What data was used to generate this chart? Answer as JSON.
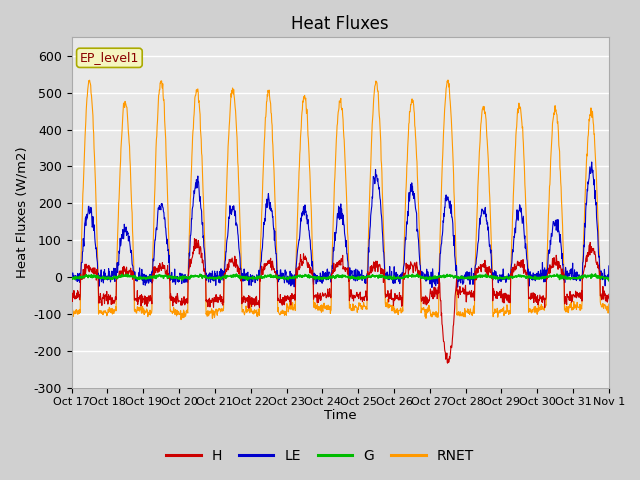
{
  "title": "Heat Fluxes",
  "ylabel": "Heat Fluxes (W/m2)",
  "xlabel": "Time",
  "ylim": [
    -300,
    650
  ],
  "yticks": [
    -300,
    -200,
    -100,
    0,
    100,
    200,
    300,
    400,
    500,
    600
  ],
  "annotation": "EP_level1",
  "legend_labels": [
    "H",
    "LE",
    "G",
    "RNET"
  ],
  "legend_colors": [
    "#cc0000",
    "#0000cc",
    "#00bb00",
    "#ff9900"
  ],
  "line_colors": {
    "H": "#cc0000",
    "LE": "#0000cc",
    "G": "#00bb00",
    "RNET": "#ff9900"
  },
  "x_tick_labels": [
    "Oct 17",
    "Oct 18",
    "Oct 19",
    "Oct 20",
    "Oct 21",
    "Oct 22",
    "Oct 23",
    "Oct 24",
    "Oct 25",
    "Oct 26",
    "Oct 27",
    "Oct 28",
    "Oct 29",
    "Oct 30",
    "Oct 31",
    "Nov 1"
  ],
  "fig_bg": "#d0d0d0",
  "ax_bg": "#e8e8e8",
  "grid_color": "#ffffff"
}
